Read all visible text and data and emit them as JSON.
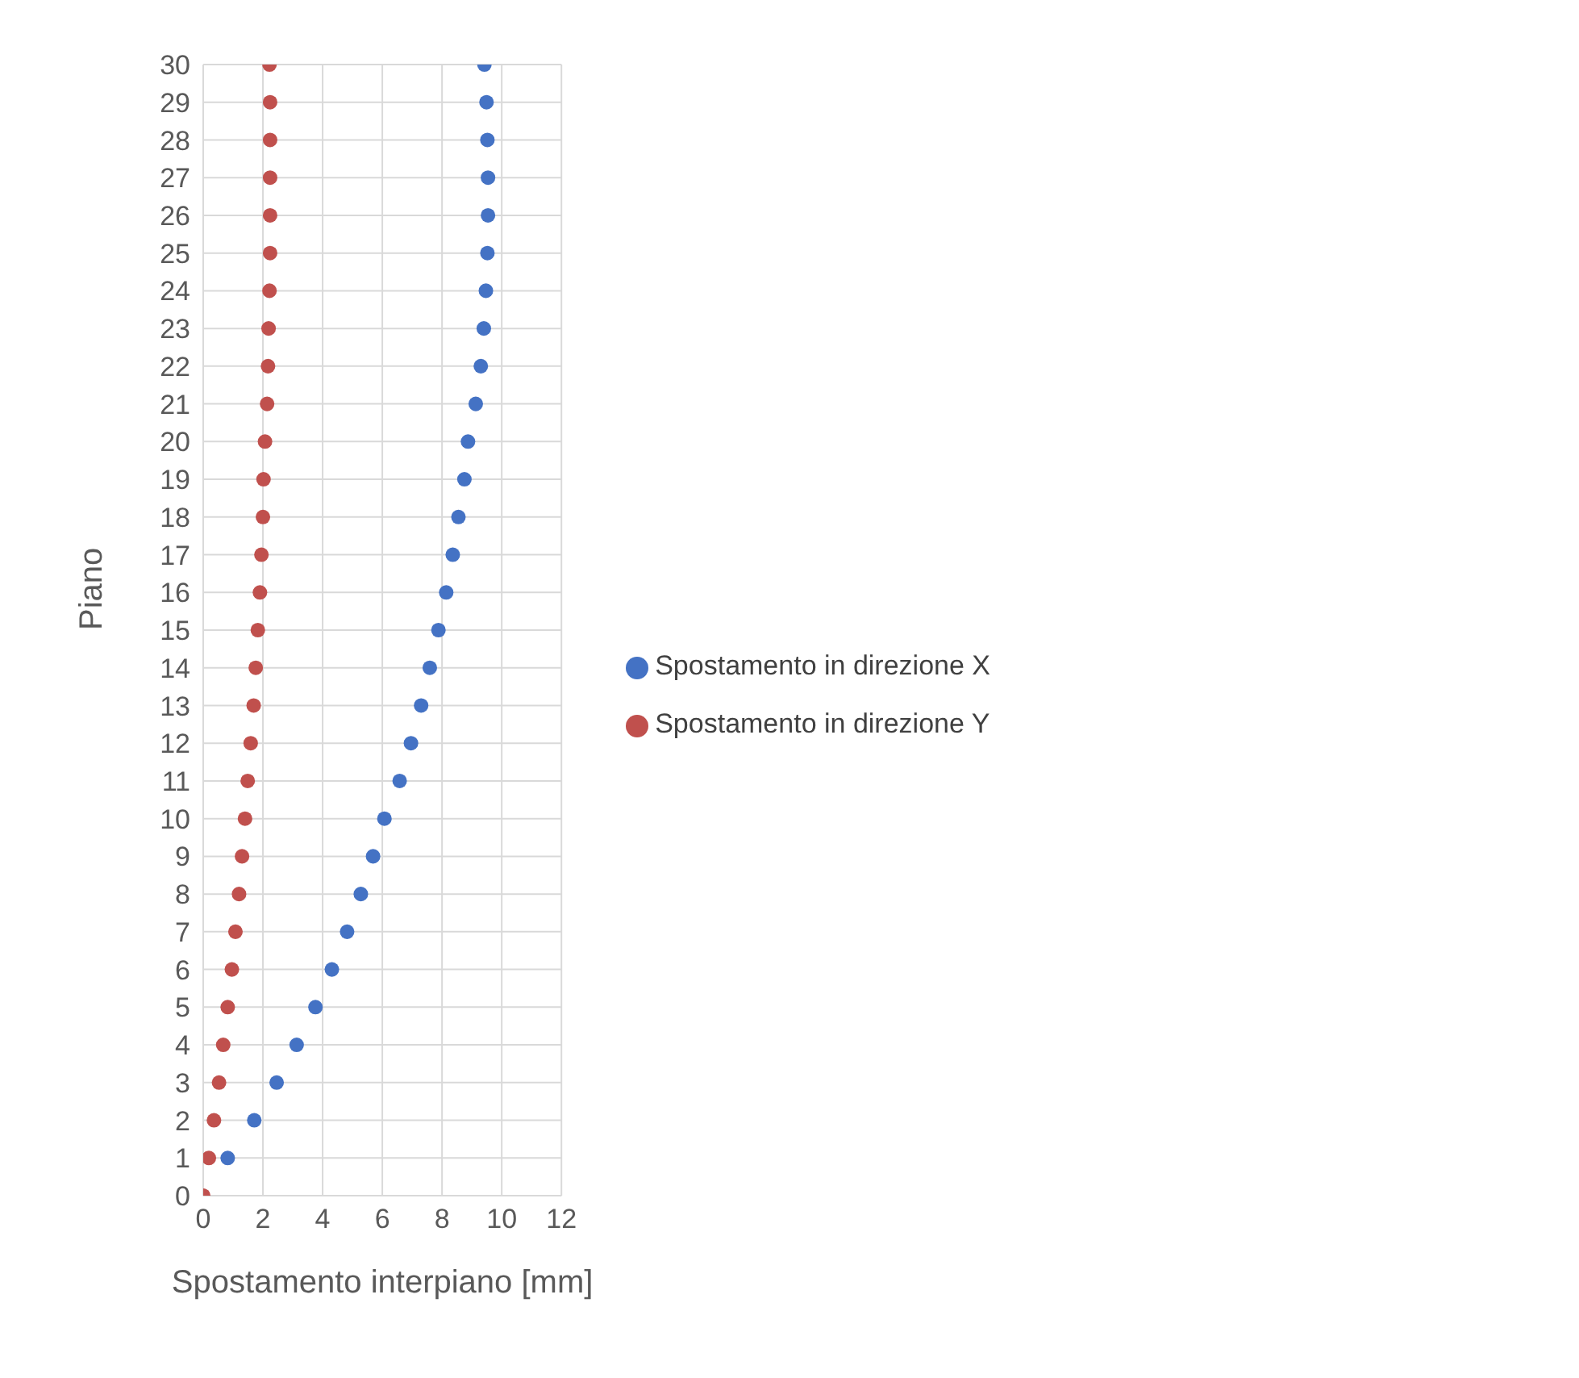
{
  "chart_data": {
    "type": "scatter",
    "xlabel": "Spostamento interpiano [mm]",
    "ylabel": "Piano",
    "xlim": [
      0,
      12
    ],
    "xticks": [
      0,
      2,
      4,
      6,
      8,
      10,
      12
    ],
    "ylim": [
      0,
      30
    ],
    "yticks": [
      0,
      1,
      2,
      3,
      4,
      5,
      6,
      7,
      8,
      9,
      10,
      11,
      12,
      13,
      14,
      15,
      16,
      17,
      18,
      19,
      20,
      21,
      22,
      23,
      24,
      25,
      26,
      27,
      28,
      29,
      30
    ],
    "grid": true,
    "legend": "right",
    "marker": "circle",
    "series": [
      {
        "name": "Spostamento in direzione X",
        "color": "#4472c4",
        "x": [
          null,
          0.82,
          1.71,
          2.46,
          3.13,
          3.76,
          4.31,
          4.82,
          5.28,
          5.69,
          6.07,
          6.58,
          6.96,
          7.3,
          7.59,
          7.88,
          8.14,
          8.36,
          8.55,
          8.75,
          8.87,
          9.13,
          9.3,
          9.4,
          9.47,
          9.52,
          9.54,
          9.54,
          9.52,
          9.49,
          9.42
        ],
        "values": [
          null,
          1,
          2,
          3,
          4,
          5,
          6,
          7,
          8,
          9,
          10,
          11,
          12,
          13,
          14,
          15,
          16,
          17,
          18,
          19,
          20,
          21,
          22,
          23,
          24,
          25,
          26,
          27,
          28,
          29,
          30
        ]
      },
      {
        "name": "Spostamento in direzione Y",
        "color": "#c0504d",
        "x": [
          0,
          0.19,
          0.36,
          0.53,
          0.67,
          0.82,
          0.96,
          1.08,
          1.2,
          1.3,
          1.4,
          1.49,
          1.59,
          1.69,
          1.76,
          1.83,
          1.9,
          1.95,
          2,
          2.02,
          2.07,
          2.14,
          2.17,
          2.19,
          2.22,
          2.24,
          2.24,
          2.24,
          2.24,
          2.24,
          2.22
        ],
        "values": [
          0,
          1,
          2,
          3,
          4,
          5,
          6,
          7,
          8,
          9,
          10,
          11,
          12,
          13,
          14,
          15,
          16,
          17,
          18,
          19,
          20,
          21,
          22,
          23,
          24,
          25,
          26,
          27,
          28,
          29,
          30
        ]
      }
    ]
  }
}
